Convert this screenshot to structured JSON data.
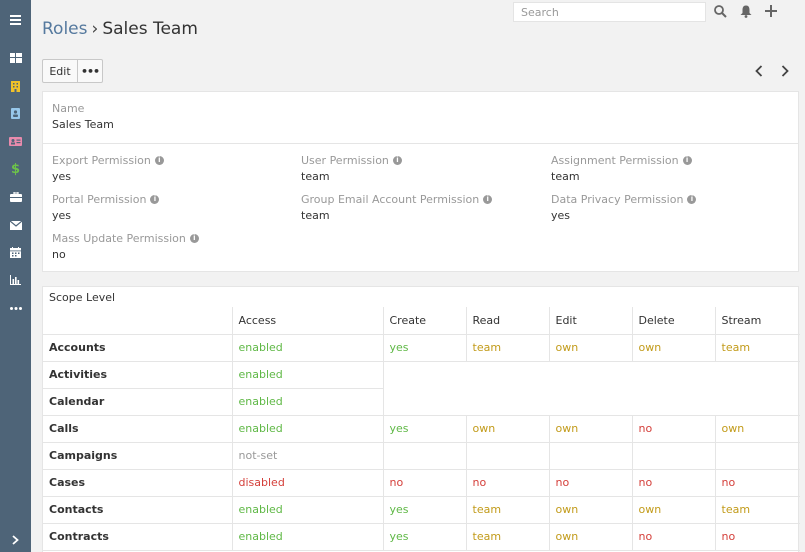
{
  "topbar": {
    "search_placeholder": "Search"
  },
  "breadcrumb": {
    "parent": "Roles",
    "separator": "›",
    "current": "Sales Team"
  },
  "actions": {
    "edit_label": "Edit",
    "more_label": "•••"
  },
  "sidebar": {
    "items": [
      {
        "icon": "menu-icon"
      },
      {
        "icon": "dashboard-icon"
      },
      {
        "icon": "building-icon",
        "color": "#f0c12a"
      },
      {
        "icon": "contact-book-icon",
        "color": "#97c7ea"
      },
      {
        "icon": "id-card-icon",
        "color": "#e98bad"
      },
      {
        "icon": "dollar-icon",
        "color": "#6cc24a"
      },
      {
        "icon": "briefcase-icon"
      },
      {
        "icon": "envelope-icon"
      },
      {
        "icon": "calendar-icon"
      },
      {
        "icon": "bar-chart-icon"
      },
      {
        "icon": "more-icon"
      },
      {
        "icon": "chevron-right-icon"
      }
    ]
  },
  "details": {
    "name_label": "Name",
    "name_value": "Sales Team",
    "permissions": [
      {
        "label": "Export Permission",
        "value": "yes"
      },
      {
        "label": "User Permission",
        "value": "team"
      },
      {
        "label": "Assignment Permission",
        "value": "team"
      },
      {
        "label": "Portal Permission",
        "value": "yes"
      },
      {
        "label": "Group Email Account Permission",
        "value": "team"
      },
      {
        "label": "Data Privacy Permission",
        "value": "yes"
      },
      {
        "label": "Mass Update Permission",
        "value": "no"
      }
    ],
    "info_glyph": "i"
  },
  "scope": {
    "title": "Scope Level",
    "columns": [
      "",
      "Access",
      "Create",
      "Read",
      "Edit",
      "Delete",
      "Stream"
    ],
    "rows": [
      {
        "name": "Accounts",
        "access": "enabled",
        "cells": [
          "yes",
          "team",
          "own",
          "own",
          "team"
        ]
      },
      {
        "name": "Activities",
        "access": "enabled",
        "cells": []
      },
      {
        "name": "Calendar",
        "access": "enabled",
        "cells": []
      },
      {
        "name": "Calls",
        "access": "enabled",
        "cells": [
          "yes",
          "own",
          "own",
          "no",
          "own"
        ]
      },
      {
        "name": "Campaigns",
        "access": "not-set",
        "cells": [
          "",
          "",
          "",
          "",
          ""
        ]
      },
      {
        "name": "Cases",
        "access": "disabled",
        "cells": [
          "no",
          "no",
          "no",
          "no",
          "no"
        ]
      },
      {
        "name": "Contacts",
        "access": "enabled",
        "cells": [
          "yes",
          "team",
          "own",
          "own",
          "team"
        ]
      },
      {
        "name": "Contracts",
        "access": "enabled",
        "cells": [
          "yes",
          "team",
          "own",
          "no",
          "no"
        ]
      }
    ]
  },
  "colors": {
    "sidebar_bg": "#4e6478",
    "link": "#55799e",
    "enabled": "#5fb846",
    "yes": "#5fb846",
    "team": "#c29b1a",
    "own": "#c29b1a",
    "no": "#d43f3a",
    "disabled": "#d43f3a",
    "not_set": "#999999"
  }
}
